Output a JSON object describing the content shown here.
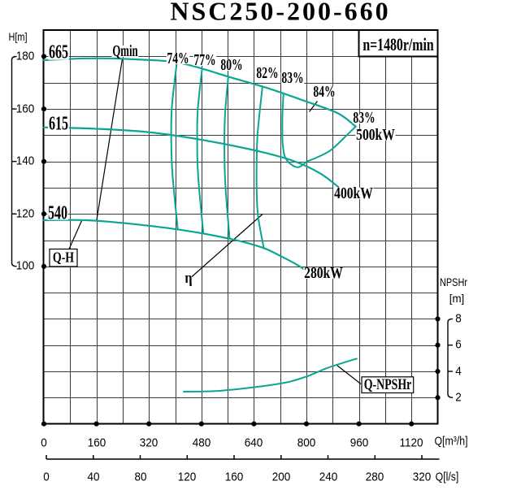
{
  "colors": {
    "curve": "#0aa594",
    "grid": "#3a3a3a",
    "frame": "#000000",
    "text": "#000000",
    "background": "#ffffff"
  },
  "chart_data": {
    "type": "line",
    "title": "NSC250-200-660",
    "speed_label": "n=1480r/min",
    "legend_qh": "Q-H",
    "legend_qnpshr": "Q-NPSHr",
    "qmin_label": "Qmin",
    "eta_label": "η",
    "axes": {
      "x": {
        "label": "Q[m³/h]",
        "ticks": [
          "0",
          "160",
          "320",
          "480",
          "640",
          "800",
          "960",
          "1120"
        ],
        "tick_values": [
          0,
          160,
          320,
          480,
          640,
          800,
          960,
          1120
        ],
        "range": [
          0,
          1200
        ],
        "minor_step": 80
      },
      "x2": {
        "label": "Q[l/s]",
        "ticks": [
          "0",
          "40",
          "80",
          "120",
          "160",
          "200",
          "240",
          "280",
          "320"
        ],
        "tick_values": [
          0,
          40,
          80,
          120,
          160,
          200,
          240,
          280,
          320
        ],
        "range": [
          0,
          320
        ]
      },
      "y": {
        "label": "H[m]",
        "ticks": [
          "180",
          "160",
          "140",
          "120",
          "100"
        ],
        "tick_values": [
          180,
          160,
          140,
          120,
          100
        ],
        "range": [
          40,
          190
        ],
        "minor_step": 10
      },
      "y2": {
        "label": "NPSHr",
        "unit": "[m]",
        "ticks": [
          "8",
          "6",
          "4",
          "2"
        ],
        "tick_values": [
          8,
          6,
          4,
          2
        ],
        "range": [
          1,
          9
        ]
      }
    },
    "series": [
      {
        "name": "head-665",
        "label": "665",
        "kind": "QH",
        "points": [
          [
            0,
            178.6
          ],
          [
            140,
            179.3
          ],
          [
            295,
            178.8
          ],
          [
            420,
            177.4
          ],
          [
            570,
            172.0
          ],
          [
            675,
            168.2
          ],
          [
            785,
            163.5
          ],
          [
            895,
            158.4
          ],
          [
            950,
            153.3
          ]
        ]
      },
      {
        "name": "head-615",
        "label": "615",
        "kind": "QH",
        "points": [
          [
            0,
            153.0
          ],
          [
            150,
            152.5
          ],
          [
            315,
            151.2
          ],
          [
            483,
            148.2
          ],
          [
            650,
            144.0
          ],
          [
            760,
            140.2
          ],
          [
            840,
            135.6
          ],
          [
            897,
            130.3
          ]
        ]
      },
      {
        "name": "head-540",
        "label": "540",
        "kind": "QH",
        "points": [
          [
            0,
            117.6
          ],
          [
            130,
            117.6
          ],
          [
            275,
            116.1
          ],
          [
            424,
            113.8
          ],
          [
            572,
            110.4
          ],
          [
            665,
            107.2
          ],
          [
            722,
            103.9
          ],
          [
            776,
            100.3
          ],
          [
            798,
            98.4
          ]
        ]
      },
      {
        "name": "eff-74",
        "label": "74%",
        "kind": "efficiency",
        "points": [
          [
            405,
            177.4
          ],
          [
            390,
            160.8
          ],
          [
            388,
            147.6
          ],
          [
            392,
            134.8
          ],
          [
            408,
            114.2
          ]
        ]
      },
      {
        "name": "eff-77",
        "label": "77%",
        "kind": "efficiency",
        "points": [
          [
            482,
            175.0
          ],
          [
            469,
            160.0
          ],
          [
            467,
            147.6
          ],
          [
            470,
            134.5
          ],
          [
            486,
            112.6
          ]
        ]
      },
      {
        "name": "eff-80",
        "label": "80%",
        "kind": "efficiency",
        "points": [
          [
            562,
            172.3
          ],
          [
            552,
            158.0
          ],
          [
            550,
            145.0
          ],
          [
            553,
            131.0
          ],
          [
            566,
            110.5
          ]
        ]
      },
      {
        "name": "eff-82",
        "label": "82%",
        "kind": "efficiency",
        "points": [
          [
            666,
            168.5
          ],
          [
            651,
            150.0
          ],
          [
            648,
            133.5
          ],
          [
            652,
            120.0
          ],
          [
            670,
            107.0
          ]
        ]
      },
      {
        "name": "eff-83",
        "label": "83%",
        "kind": "efficiency",
        "points": [
          [
            730,
            165.7
          ],
          [
            727,
            157.5
          ],
          [
            727,
            148.5
          ],
          [
            729.5,
            144.8
          ],
          [
            733,
            142.3
          ],
          [
            737.5,
            141.0
          ],
          [
            742,
            140.2
          ],
          [
            747,
            139.5
          ],
          [
            752,
            139.0
          ],
          [
            758,
            138.5
          ],
          [
            763,
            138.1
          ],
          [
            768,
            137.9
          ],
          [
            773,
            137.8
          ],
          [
            778,
            137.9
          ],
          [
            783,
            138.2
          ],
          [
            788,
            138.6
          ],
          [
            793,
            139.1
          ],
          [
            798,
            139.7
          ],
          [
            803,
            140.1
          ],
          [
            830,
            141.4
          ],
          [
            873,
            144.2
          ],
          [
            919,
            149.5
          ],
          [
            950,
            153.3
          ]
        ]
      },
      {
        "name": "npshr",
        "label": "Q-NPSHr",
        "kind": "NPSH",
        "points": [
          [
            426,
            2.45
          ],
          [
            545,
            2.54
          ],
          [
            713,
            3.04
          ],
          [
            795,
            3.56
          ],
          [
            862,
            4.24
          ],
          [
            923,
            4.74
          ],
          [
            953,
            4.96
          ]
        ]
      }
    ],
    "annotations": {
      "eff_84": "84%",
      "eff_83_right": "83%",
      "power_500": "500kW",
      "power_400": "400kW",
      "power_280": "280kW"
    }
  }
}
